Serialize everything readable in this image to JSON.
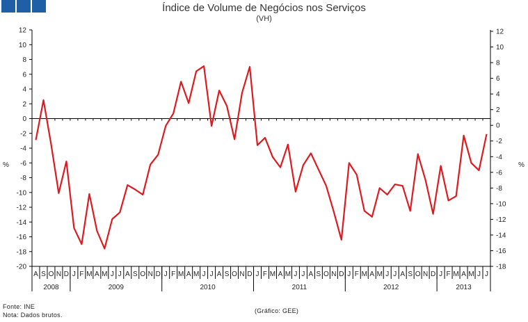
{
  "logo": {
    "colors": [
      "#1f5fa6",
      "#1f5fa6",
      "#1f5fa6"
    ]
  },
  "chart_data": {
    "type": "line",
    "title": "Índice de Volume de Negócios nos Serviços",
    "subtitle": "(VH)",
    "ylabel_left": "%",
    "ylabel_right": "%",
    "ylim_left": [
      -20,
      12
    ],
    "ylim_right": [
      -18,
      12
    ],
    "yticks_left": [
      "12",
      "10",
      "8",
      "6",
      "4",
      "2",
      "0",
      "-2",
      "-4",
      "-6",
      "-8",
      "-10",
      "-12",
      "-14",
      "-16",
      "-18",
      "-20"
    ],
    "yticks_right": [
      "12",
      "10",
      "8",
      "6",
      "4",
      "2",
      "0",
      "-2",
      "-4",
      "-6",
      "-8",
      "-10",
      "-12",
      "-14",
      "-16",
      "-18"
    ],
    "month_labels": [
      "A",
      "S",
      "O",
      "N",
      "D",
      "J",
      "F",
      "M",
      "A",
      "M",
      "J",
      "J",
      "A",
      "S",
      "O",
      "N",
      "D",
      "J",
      "F",
      "M",
      "A",
      "M",
      "J",
      "J",
      "A",
      "S",
      "O",
      "N",
      "D",
      "J",
      "F",
      "M",
      "A",
      "M",
      "J",
      "J",
      "A",
      "S",
      "O",
      "N",
      "D",
      "J",
      "F",
      "M",
      "A",
      "M",
      "J",
      "J",
      "A",
      "S",
      "O",
      "N",
      "D",
      "J",
      "F",
      "M",
      "A",
      "M",
      "J",
      "J"
    ],
    "year_groups": [
      {
        "label": "2008",
        "start": 0,
        "count": 5
      },
      {
        "label": "2009",
        "start": 5,
        "count": 12
      },
      {
        "label": "2010",
        "start": 17,
        "count": 12
      },
      {
        "label": "2011",
        "start": 29,
        "count": 12
      },
      {
        "label": "2012",
        "start": 41,
        "count": 12
      },
      {
        "label": "2013",
        "start": 53,
        "count": 7
      }
    ],
    "series": [
      {
        "name": "VH",
        "color": "#e0191e",
        "values": [
          -2.9,
          2.5,
          -3.5,
          -10.1,
          -5.8,
          -14.8,
          -17.0,
          -10.2,
          -15.2,
          -17.6,
          -13.6,
          -12.7,
          -9.0,
          -9.6,
          -10.3,
          -6.2,
          -4.9,
          -1.0,
          0.7,
          5.0,
          2.1,
          6.4,
          7.1,
          -1.0,
          3.8,
          1.7,
          -2.8,
          3.5,
          7.0,
          -3.6,
          -2.6,
          -5.2,
          -6.6,
          -3.5,
          -9.9,
          -6.3,
          -4.7,
          -6.9,
          -9.1,
          -12.6,
          -16.4,
          -6.0,
          -7.6,
          -12.5,
          -13.3,
          -9.4,
          -10.3,
          -8.9,
          -9.1,
          -12.5,
          -4.8,
          -8.3,
          -12.9,
          -6.4,
          -11.1,
          -10.5,
          -2.3,
          -6.0,
          -7.0,
          -2.1
        ]
      }
    ]
  },
  "footer": {
    "source": "Fonte: INE",
    "note": "Nota: Dados brutos.",
    "credit": "(Gráfico: GEE)"
  }
}
